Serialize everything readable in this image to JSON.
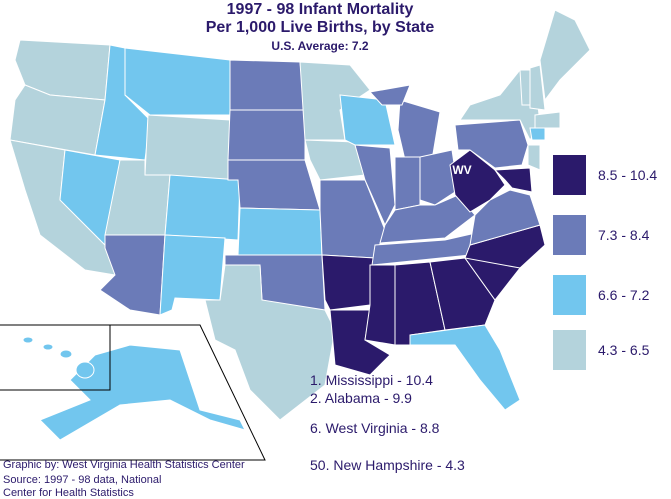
{
  "title": [
    "1997 - 98 Infant Mortality",
    "Per 1,000 Live Births, by State"
  ],
  "subtitle": "U.S. Average: 7.2",
  "legend": [
    {
      "label": "8.5 - 10.4",
      "color": "#2b1a6b"
    },
    {
      "label": "7.3 - 8.4",
      "color": "#6b7bb8"
    },
    {
      "label": "6.6 - 7.2",
      "color": "#72c6ee"
    },
    {
      "label": "4.3 - 6.5",
      "color": "#b4d3dc"
    }
  ],
  "map_label": "WV",
  "rankings": [
    "1. Mississippi - 10.4",
    "2. Alabama - 9.9",
    "6. West Virginia - 8.8",
    "50. New Hampshire - 4.3"
  ],
  "credits": [
    "Graphic by: West Virginia Health Statistics Center",
    "Source: 1997 - 98 data, National",
    "Center for Health Statistics"
  ]
}
